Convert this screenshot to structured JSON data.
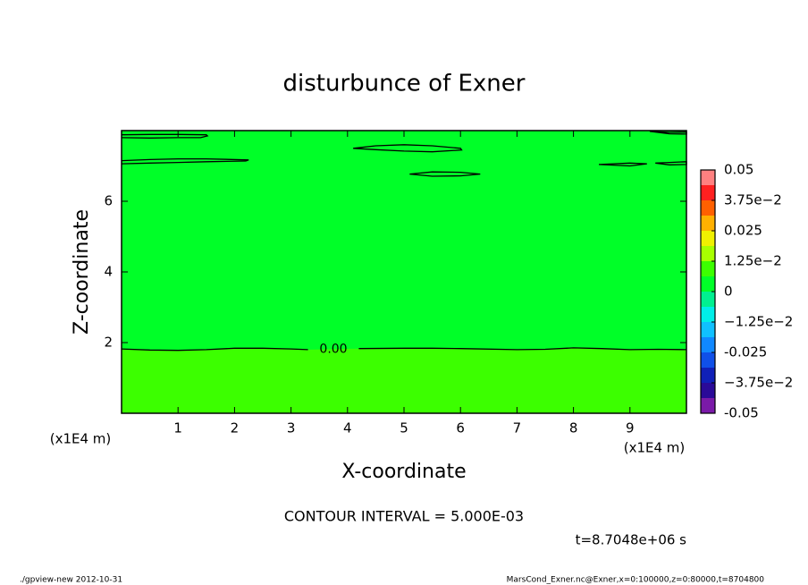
{
  "chart_data": {
    "type": "contour",
    "title": "disturbunce of Exner",
    "x_label": "X-coordinate",
    "y_label": "Z-coordinate",
    "x_unit": "(x1E4 m)",
    "annotation": "CONTOUR INTERVAL = 5.000E-03",
    "time_label": "t=8.7048e+06 s",
    "footer_left": "./gpview-new  2012-10-31",
    "footer_right": "MarsCond_Exner.nc@Exner,x=0:100000,z=0:80000,t=8704800",
    "xlim": [
      0,
      10
    ],
    "ylim": [
      0,
      8
    ],
    "xticks": [
      1,
      2,
      3,
      4,
      5,
      6,
      7,
      8,
      9
    ],
    "yticks": [
      2,
      4,
      6
    ],
    "contours": [
      {
        "value": 0,
        "value_label": "0.00",
        "x": [
          0,
          0.5,
          1,
          1.5,
          2,
          2.5,
          3,
          3.3,
          null,
          4.2,
          5,
          5.5,
          6,
          7,
          7.5,
          8,
          8.5,
          9,
          9.5,
          10
        ],
        "y": [
          1.82,
          1.79,
          1.78,
          1.8,
          1.84,
          1.84,
          1.82,
          1.8,
          null,
          1.83,
          1.84,
          1.84,
          1.83,
          1.8,
          1.81,
          1.85,
          1.83,
          1.8,
          1.81,
          1.8
        ]
      },
      {
        "x": [
          0,
          0.5,
          1,
          1.5,
          1.52,
          1.4,
          1,
          0.5,
          0
        ],
        "y": [
          7.88,
          7.89,
          7.89,
          7.88,
          7.85,
          7.8,
          7.8,
          7.79,
          7.8
        ]
      },
      {
        "x": [
          0,
          0.5,
          1,
          1.5,
          2.25,
          2.2,
          1.5,
          1,
          0.5,
          0
        ],
        "y": [
          7.15,
          7.18,
          7.2,
          7.2,
          7.17,
          7.14,
          7.12,
          7.1,
          7.08,
          7.06
        ]
      },
      {
        "x": [
          4.1,
          4.5,
          5,
          5.5,
          6,
          6.02,
          5.5,
          5,
          4.5,
          4.1
        ],
        "y": [
          7.5,
          7.57,
          7.6,
          7.57,
          7.5,
          7.45,
          7.4,
          7.42,
          7.46,
          7.5
        ]
      },
      {
        "x": [
          5.1,
          5.5,
          6,
          6.35,
          6,
          5.5,
          5.1
        ],
        "y": [
          6.77,
          6.83,
          6.82,
          6.77,
          6.72,
          6.71,
          6.77
        ]
      },
      {
        "x": [
          8.45,
          9,
          9.3,
          9,
          8.45
        ],
        "y": [
          7.04,
          7.08,
          7.06,
          7.0,
          7.04
        ]
      },
      {
        "x": [
          9.45,
          9.7,
          10,
          10,
          9.7,
          9.45
        ],
        "y": [
          7.08,
          7.1,
          7.12,
          7.04,
          7.03,
          7.08
        ]
      },
      {
        "x": [
          9.35,
          9.7,
          10,
          10,
          9.7,
          9.35
        ],
        "y": [
          7.98,
          7.95,
          7.96,
          7.9,
          7.91,
          7.98
        ]
      }
    ],
    "colorbar": {
      "levels": [
        -0.05,
        -0.04375,
        -0.0375,
        -0.03125,
        -0.025,
        -0.01875,
        -0.0125,
        -0.00625,
        0,
        0.00625,
        0.0125,
        0.01875,
        0.025,
        0.03125,
        0.0375,
        0.04375,
        0.05
      ],
      "colors": [
        "#7a1aa8",
        "#2a0a98",
        "#1020b8",
        "#1050e8",
        "#1088ff",
        "#10c0ff",
        "#00eee8",
        "#00f090",
        "#00ff28",
        "#3cff00",
        "#a8ff00",
        "#f0f000",
        "#ffb000",
        "#ff6000",
        "#ff2020",
        "#ff8080"
      ],
      "ticks": [
        -0.05,
        {
          "value": -0.0375,
          "label": "−3.75e−2"
        },
        -0.025,
        {
          "value": -0.0125,
          "label": "−1.25e−2"
        },
        0,
        {
          "value": 0.0125,
          "label": "1.25e−2"
        },
        0.025,
        {
          "value": 0.0375,
          "label": "3.75e−2"
        },
        0.05
      ]
    }
  }
}
